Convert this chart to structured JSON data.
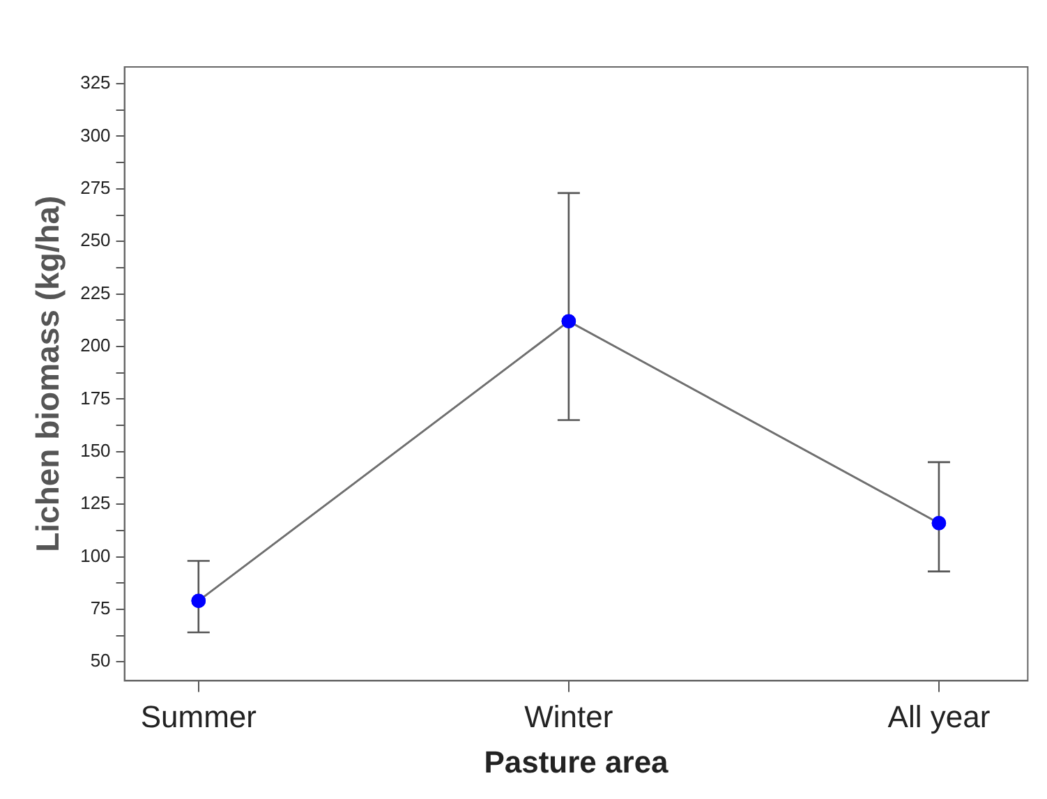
{
  "chart_data": {
    "type": "line",
    "xlabel": "Pasture area",
    "ylabel": "Lichen biomass (kg/ha)",
    "categories": [
      "Summer",
      "Winter",
      "All year"
    ],
    "series": [
      {
        "color": "#0000ff",
        "values": [
          79,
          212,
          116
        ],
        "errors": [
          [
            64,
            98
          ],
          [
            165,
            273
          ],
          [
            93,
            145
          ]
        ]
      }
    ],
    "ylim": [
      41,
      333
    ],
    "yticks": [
      50,
      {
        "value": 62.5,
        "label": null
      },
      75,
      {
        "value": 87.5,
        "label": null
      },
      100,
      {
        "value": 112.5,
        "label": null
      },
      125,
      {
        "value": 137.5,
        "label": null
      },
      150,
      {
        "value": 162.5,
        "label": null
      },
      175,
      {
        "value": 187.5,
        "label": null
      },
      200,
      {
        "value": 212.5,
        "label": null
      },
      225,
      {
        "value": 237.5,
        "label": null
      },
      250,
      {
        "value": 262.5,
        "label": null
      },
      275,
      {
        "value": 287.5,
        "label": null
      },
      300,
      {
        "value": 312.5,
        "label": null
      },
      325
    ],
    "marker": "circle",
    "grid": false,
    "legend": false
  }
}
